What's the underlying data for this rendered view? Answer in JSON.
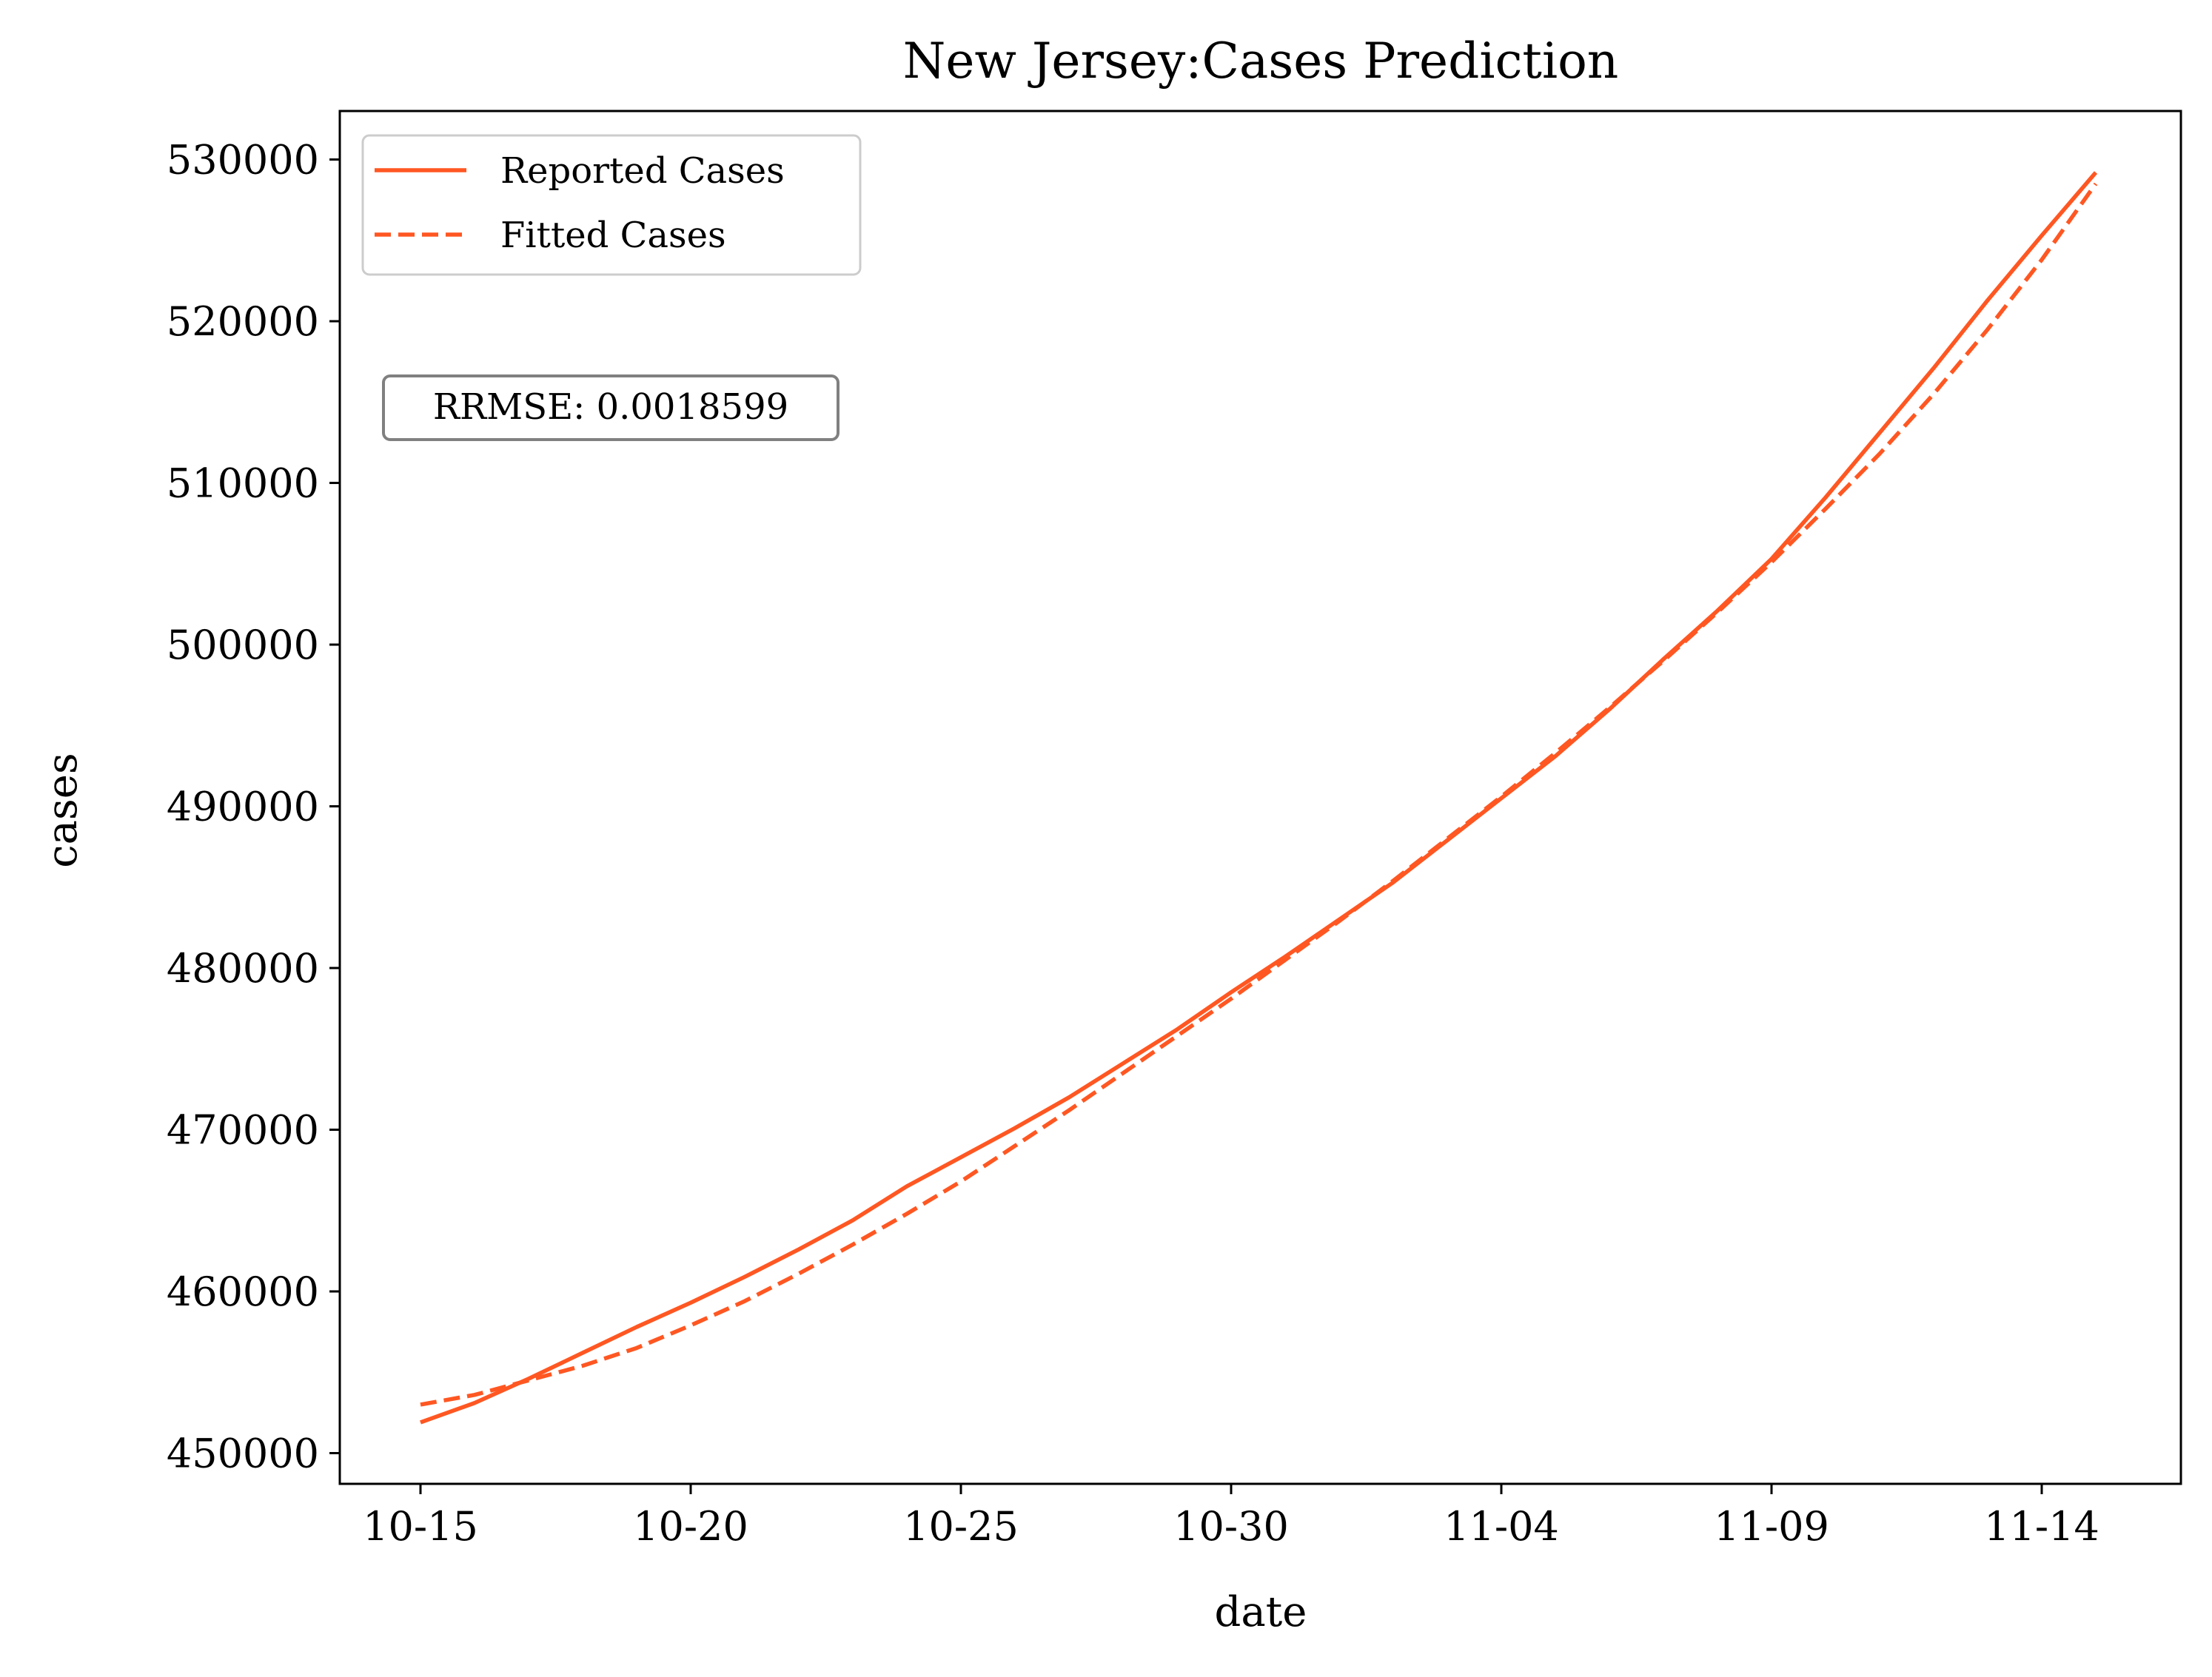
{
  "chart_data": {
    "type": "line",
    "title": "New Jersey:Cases Prediction",
    "xlabel": "date",
    "ylabel": "cases",
    "x_tick_labels": [
      "10-15",
      "10-20",
      "10-25",
      "10-30",
      "11-04",
      "11-09",
      "11-14"
    ],
    "x_tick_dates": [
      "10-15",
      "10-20",
      "10-25",
      "10-30",
      "11-04",
      "11-09",
      "11-14"
    ],
    "x": [
      "10-15",
      "10-16",
      "10-17",
      "10-18",
      "10-19",
      "10-20",
      "10-21",
      "10-22",
      "10-23",
      "10-24",
      "10-25",
      "10-26",
      "10-27",
      "10-28",
      "10-29",
      "10-30",
      "10-31",
      "11-01",
      "11-02",
      "11-03",
      "11-04",
      "11-05",
      "11-06",
      "11-07",
      "11-08",
      "11-09",
      "11-10",
      "11-11",
      "11-12",
      "11-13",
      "11-14",
      "11-15"
    ],
    "xlim": [
      "10-13.5",
      "11-17"
    ],
    "ylim": [
      448100,
      533000
    ],
    "y_ticks": [
      450000,
      460000,
      470000,
      480000,
      490000,
      500000,
      510000,
      520000,
      530000
    ],
    "y_tick_labels": [
      "450000",
      "460000",
      "470000",
      "480000",
      "490000",
      "500000",
      "510000",
      "520000",
      "530000"
    ],
    "series": [
      {
        "name": "Reported Cases",
        "style": "solid",
        "color": "#ff5722",
        "values": [
          451900,
          453100,
          454600,
          456200,
          457800,
          459300,
          460900,
          462600,
          464400,
          466500,
          468300,
          470100,
          472000,
          474100,
          476200,
          478500,
          480700,
          483000,
          485300,
          487900,
          490500,
          493100,
          496000,
          499100,
          502100,
          505300,
          509100,
          513100,
          517100,
          521300,
          525300,
          529200
        ]
      },
      {
        "name": "Fitted Cases",
        "style": "dashed",
        "color": "#ff5722",
        "values": [
          453000,
          453600,
          454500,
          455400,
          456500,
          457900,
          459400,
          461100,
          462900,
          464800,
          466800,
          469000,
          471200,
          473500,
          475800,
          478100,
          480500,
          482900,
          485400,
          488000,
          490600,
          493300,
          496100,
          499000,
          502000,
          505100,
          508400,
          511800,
          515500,
          519500,
          523800,
          528500
        ]
      }
    ],
    "legend": {
      "position": "top-left",
      "entries": [
        "Reported Cases",
        "Fitted Cases"
      ]
    },
    "annotation": "RRMSE: 0.0018599",
    "grid": false
  }
}
